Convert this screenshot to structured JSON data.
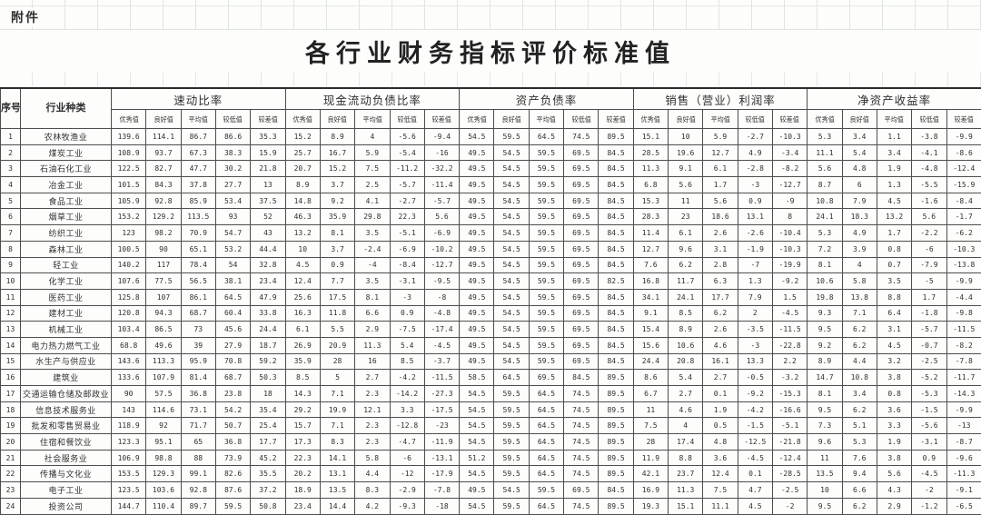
{
  "attachment_label": "附件",
  "title": "各行业财务指标评价标准值",
  "colors": {
    "table_border": "#4e4e4e",
    "sheet_grid_line": "#dee6e1",
    "text": "#2f2f2f"
  },
  "table": {
    "corner_headers": {
      "no": "序号",
      "industry": "行业种类"
    },
    "groups": [
      "速动比率",
      "现金流动负债比率",
      "资产负债率",
      "销售（营业）利润率",
      "净资产收益率"
    ],
    "sub_headers": [
      "优秀值",
      "良好值",
      "平均值",
      "较低值",
      "较差值"
    ],
    "rows": [
      {
        "no": "1",
        "industry": "农林牧渔业",
        "values": [
          "139.6",
          "114.1",
          "86.7",
          "86.6",
          "35.3",
          "15.2",
          "8.9",
          "4",
          "-5.6",
          "-9.4",
          "54.5",
          "59.5",
          "64.5",
          "74.5",
          "89.5",
          "15.1",
          "10",
          "5.9",
          "-2.7",
          "-10.3",
          "5.3",
          "3.4",
          "1.1",
          "-3.8",
          "-9.9"
        ]
      },
      {
        "no": "2",
        "industry": "煤炭工业",
        "values": [
          "108.9",
          "93.7",
          "67.3",
          "38.3",
          "15.9",
          "25.7",
          "16.7",
          "5.9",
          "-5.4",
          "-16",
          "49.5",
          "54.5",
          "59.5",
          "69.5",
          "84.5",
          "28.5",
          "19.6",
          "12.7",
          "4.9",
          "-3.4",
          "11.1",
          "5.4",
          "3.4",
          "-4.1",
          "-8.6"
        ]
      },
      {
        "no": "3",
        "industry": "石油石化工业",
        "values": [
          "122.5",
          "82.7",
          "47.7",
          "30.2",
          "21.8",
          "20.7",
          "15.2",
          "7.5",
          "-11.2",
          "-32.2",
          "49.5",
          "54.5",
          "59.5",
          "69.5",
          "84.5",
          "11.3",
          "9.1",
          "6.1",
          "-2.8",
          "-8.2",
          "5.6",
          "4.8",
          "1.9",
          "-4.8",
          "-12.4"
        ]
      },
      {
        "no": "4",
        "industry": "冶金工业",
        "values": [
          "101.5",
          "84.3",
          "37.8",
          "27.7",
          "13",
          "8.9",
          "3.7",
          "2.5",
          "-5.7",
          "-11.4",
          "49.5",
          "54.5",
          "59.5",
          "69.5",
          "84.5",
          "6.8",
          "5.6",
          "1.7",
          "-3",
          "-12.7",
          "8.7",
          "6",
          "1.3",
          "-5.5",
          "-15.9"
        ]
      },
      {
        "no": "5",
        "industry": "食品工业",
        "values": [
          "105.9",
          "92.8",
          "85.9",
          "53.4",
          "37.5",
          "14.8",
          "9.2",
          "4.1",
          "-2.7",
          "-5.7",
          "49.5",
          "54.5",
          "59.5",
          "69.5",
          "84.5",
          "15.3",
          "11",
          "5.6",
          "0.9",
          "-9",
          "10.8",
          "7.9",
          "4.5",
          "-1.6",
          "-8.4"
        ]
      },
      {
        "no": "6",
        "industry": "烟草工业",
        "values": [
          "153.2",
          "129.2",
          "113.5",
          "93",
          "52",
          "46.3",
          "35.9",
          "29.8",
          "22.3",
          "5.6",
          "49.5",
          "54.5",
          "59.5",
          "69.5",
          "84.5",
          "28.3",
          "23",
          "18.6",
          "13.1",
          "8",
          "24.1",
          "18.3",
          "13.2",
          "5.6",
          "-1.7"
        ]
      },
      {
        "no": "7",
        "industry": "纺织工业",
        "values": [
          "123",
          "98.2",
          "70.9",
          "54.7",
          "43",
          "13.2",
          "8.1",
          "3.5",
          "-5.1",
          "-6.9",
          "49.5",
          "54.5",
          "59.5",
          "69.5",
          "84.5",
          "11.4",
          "6.1",
          "2.6",
          "-2.6",
          "-10.4",
          "5.3",
          "4.9",
          "1.7",
          "-2.2",
          "-6.2"
        ]
      },
      {
        "no": "8",
        "industry": "森林工业",
        "values": [
          "100.5",
          "90",
          "65.1",
          "53.2",
          "44.4",
          "10",
          "3.7",
          "-2.4",
          "-6.9",
          "-10.2",
          "49.5",
          "54.5",
          "59.5",
          "69.5",
          "84.5",
          "12.7",
          "9.6",
          "3.1",
          "-1.9",
          "-10.3",
          "7.2",
          "3.9",
          "0.8",
          "-6",
          "-10.3"
        ]
      },
      {
        "no": "9",
        "industry": "轻工业",
        "values": [
          "140.2",
          "117",
          "78.4",
          "54",
          "32.8",
          "4.5",
          "0.9",
          "-4",
          "-8.4",
          "-12.7",
          "49.5",
          "54.5",
          "59.5",
          "69.5",
          "84.5",
          "7.6",
          "6.2",
          "2.8",
          "-7",
          "-19.9",
          "8.1",
          "4",
          "0.7",
          "-7.9",
          "-13.8"
        ]
      },
      {
        "no": "10",
        "industry": "化学工业",
        "values": [
          "107.6",
          "77.5",
          "56.5",
          "38.1",
          "23.4",
          "12.4",
          "7.7",
          "3.5",
          "-3.1",
          "-9.5",
          "49.5",
          "54.5",
          "59.5",
          "69.5",
          "82.5",
          "16.8",
          "11.7",
          "6.3",
          "1.3",
          "-9.2",
          "10.6",
          "5.8",
          "3.5",
          "-5",
          "-9.9"
        ]
      },
      {
        "no": "11",
        "industry": "医药工业",
        "values": [
          "125.8",
          "107",
          "86.1",
          "64.5",
          "47.9",
          "25.6",
          "17.5",
          "8.1",
          "-3",
          "-8",
          "49.5",
          "54.5",
          "59.5",
          "69.5",
          "84.5",
          "34.1",
          "24.1",
          "17.7",
          "7.9",
          "1.5",
          "19.8",
          "13.8",
          "8.8",
          "1.7",
          "-4.4"
        ]
      },
      {
        "no": "12",
        "industry": "建材工业",
        "values": [
          "120.8",
          "94.3",
          "68.7",
          "60.4",
          "33.8",
          "16.3",
          "11.8",
          "6.6",
          "0.9",
          "-4.8",
          "49.5",
          "54.5",
          "59.5",
          "69.5",
          "84.5",
          "9.1",
          "8.5",
          "6.2",
          "2",
          "-4.5",
          "9.3",
          "7.1",
          "6.4",
          "-1.8",
          "-9.8"
        ]
      },
      {
        "no": "13",
        "industry": "机械工业",
        "values": [
          "103.4",
          "86.5",
          "73",
          "45.6",
          "24.4",
          "6.1",
          "5.5",
          "2.9",
          "-7.5",
          "-17.4",
          "49.5",
          "54.5",
          "59.5",
          "69.5",
          "84.5",
          "15.4",
          "8.9",
          "2.6",
          "-3.5",
          "-11.5",
          "9.5",
          "6.2",
          "3.1",
          "-5.7",
          "-11.5"
        ]
      },
      {
        "no": "14",
        "industry": "电力热力燃气工业",
        "values": [
          "68.8",
          "49.6",
          "39",
          "27.9",
          "18.7",
          "26.9",
          "20.9",
          "11.3",
          "5.4",
          "-4.5",
          "49.5",
          "54.5",
          "59.5",
          "69.5",
          "84.5",
          "15.6",
          "10.6",
          "4.6",
          "-3",
          "-22.8",
          "9.2",
          "6.2",
          "4.5",
          "-0.7",
          "-8.2"
        ]
      },
      {
        "no": "15",
        "industry": "水生产与供应业",
        "values": [
          "143.6",
          "113.3",
          "95.9",
          "70.8",
          "59.2",
          "35.9",
          "28",
          "16",
          "8.5",
          "-3.7",
          "49.5",
          "54.5",
          "59.5",
          "69.5",
          "84.5",
          "24.4",
          "20.8",
          "16.1",
          "13.3",
          "2.2",
          "8.9",
          "4.4",
          "3.2",
          "-2.5",
          "-7.8"
        ]
      },
      {
        "no": "16",
        "industry": "建筑业",
        "values": [
          "133.6",
          "107.9",
          "81.4",
          "68.7",
          "50.3",
          "8.5",
          "5",
          "2.7",
          "-4.2",
          "-11.5",
          "58.5",
          "64.5",
          "69.5",
          "84.5",
          "89.5",
          "8.6",
          "5.4",
          "2.7",
          "-0.5",
          "-3.2",
          "14.7",
          "10.8",
          "3.8",
          "-5.2",
          "-11.7"
        ]
      },
      {
        "no": "17",
        "industry": "交通运输仓储及邮政业",
        "values": [
          "90",
          "57.5",
          "36.8",
          "23.8",
          "18",
          "14.3",
          "7.1",
          "2.3",
          "-14.2",
          "-27.3",
          "54.5",
          "59.5",
          "64.5",
          "74.5",
          "89.5",
          "6.7",
          "2.7",
          "0.1",
          "-9.2",
          "-15.3",
          "8.1",
          "3.4",
          "0.8",
          "-5.3",
          "-14.3"
        ]
      },
      {
        "no": "18",
        "industry": "信息技术服务业",
        "values": [
          "143",
          "114.6",
          "73.1",
          "54.2",
          "35.4",
          "29.2",
          "19.9",
          "12.1",
          "3.3",
          "-17.5",
          "54.5",
          "59.5",
          "64.5",
          "74.5",
          "89.5",
          "11",
          "4.6",
          "1.9",
          "-4.2",
          "-16.6",
          "9.5",
          "6.2",
          "3.6",
          "-1.5",
          "-9.9"
        ]
      },
      {
        "no": "19",
        "industry": "批发和零售贸易业",
        "values": [
          "118.9",
          "92",
          "71.7",
          "50.7",
          "25.4",
          "15.7",
          "7.1",
          "2.3",
          "-12.8",
          "-23",
          "54.5",
          "59.5",
          "64.5",
          "74.5",
          "89.5",
          "7.5",
          "4",
          "0.5",
          "-1.5",
          "-5.1",
          "7.3",
          "5.1",
          "3.3",
          "-5.6",
          "-13"
        ]
      },
      {
        "no": "20",
        "industry": "住宿和餐饮业",
        "values": [
          "123.3",
          "95.1",
          "65",
          "36.8",
          "17.7",
          "17.3",
          "8.3",
          "2.3",
          "-4.7",
          "-11.9",
          "54.5",
          "59.5",
          "64.5",
          "74.5",
          "89.5",
          "28",
          "17.4",
          "4.8",
          "-12.5",
          "-21.8",
          "9.6",
          "5.3",
          "1.9",
          "-3.1",
          "-8.7"
        ]
      },
      {
        "no": "21",
        "industry": "社会服务业",
        "values": [
          "106.9",
          "98.8",
          "88",
          "73.9",
          "45.2",
          "22.3",
          "14.1",
          "5.8",
          "-6",
          "-13.1",
          "51.2",
          "59.5",
          "64.5",
          "74.5",
          "89.5",
          "11.9",
          "8.8",
          "3.6",
          "-4.5",
          "-12.4",
          "11",
          "7.6",
          "3.8",
          "0.9",
          "-9.6"
        ]
      },
      {
        "no": "22",
        "industry": "传播与文化业",
        "values": [
          "153.5",
          "129.3",
          "99.1",
          "82.6",
          "35.5",
          "20.2",
          "13.1",
          "4.4",
          "-12",
          "-17.9",
          "54.5",
          "59.5",
          "64.5",
          "74.5",
          "89.5",
          "42.1",
          "23.7",
          "12.4",
          "0.1",
          "-28.5",
          "13.5",
          "9.4",
          "5.6",
          "-4.5",
          "-11.3"
        ]
      },
      {
        "no": "23",
        "industry": "电子工业",
        "values": [
          "123.5",
          "103.6",
          "92.8",
          "87.6",
          "37.2",
          "18.9",
          "13.5",
          "8.3",
          "-2.9",
          "-7.8",
          "49.5",
          "54.5",
          "59.5",
          "69.5",
          "84.5",
          "16.9",
          "11.3",
          "7.5",
          "4.7",
          "-2.5",
          "10",
          "6.6",
          "4.3",
          "-2",
          "-9.1"
        ]
      },
      {
        "no": "24",
        "industry": "投资公司",
        "values": [
          "144.7",
          "110.4",
          "89.7",
          "59.5",
          "50.8",
          "23.4",
          "14.4",
          "4.2",
          "-9.3",
          "-18",
          "54.5",
          "59.5",
          "64.5",
          "74.5",
          "89.5",
          "19.3",
          "15.1",
          "11.1",
          "4.5",
          "-2",
          "9.5",
          "6.2",
          "2.9",
          "-1.2",
          "-6.5"
        ]
      }
    ]
  }
}
